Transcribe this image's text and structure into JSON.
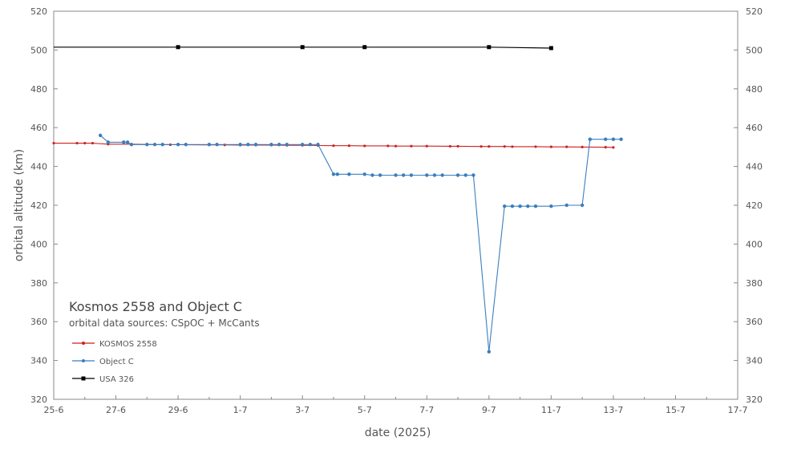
{
  "chart_data": {
    "type": "line",
    "title": "Kosmos 2558 and Object C",
    "subtitle": "orbital data sources:  CSpOC + McCants",
    "xlabel": "date (2025)",
    "ylabel": "orbital altitude (km)",
    "x_range": [
      "2025-06-25",
      "2025-07-17"
    ],
    "x_ticks": [
      "25-6",
      "27-6",
      "29-6",
      "1-7",
      "3-7",
      "5-7",
      "7-7",
      "9-7",
      "11-7",
      "13-7",
      "15-7",
      "17-7"
    ],
    "ylim": [
      320,
      520
    ],
    "y_ticks": [
      "320",
      "340",
      "360",
      "380",
      "400",
      "420",
      "440",
      "460",
      "480",
      "500",
      "520"
    ],
    "y_axis_right": true,
    "grid": false,
    "legend_position": "bottom-left",
    "series": [
      {
        "name": "KOSMOS 2558",
        "color": "#cc2222",
        "marker": "small-dot",
        "x": [
          "2025-06-25",
          "2025-06-25 18:00",
          "2025-06-26",
          "2025-06-26 06:00",
          "2025-06-26 18:00",
          "2025-06-27 12:00",
          "2025-06-28 06:00",
          "2025-06-28 18:00",
          "2025-06-29",
          "2025-06-30",
          "2025-06-30 12:00",
          "2025-07-01",
          "2025-07-01 12:00",
          "2025-07-02",
          "2025-07-02 12:00",
          "2025-07-03",
          "2025-07-03 12:00",
          "2025-07-04",
          "2025-07-04 12:00",
          "2025-07-05",
          "2025-07-05 18:00",
          "2025-07-06",
          "2025-07-06 12:00",
          "2025-07-07",
          "2025-07-07 18:00",
          "2025-07-08",
          "2025-07-08 18:00",
          "2025-07-09",
          "2025-07-09 12:00",
          "2025-07-09 18:00",
          "2025-07-10 12:00",
          "2025-07-11",
          "2025-07-11 12:00",
          "2025-07-12",
          "2025-07-12 18:00",
          "2025-07-13"
        ],
        "y": [
          452,
          452,
          452,
          452,
          451.5,
          451.5,
          451.3,
          451.2,
          451.2,
          451.1,
          451.1,
          451.0,
          451.0,
          451.0,
          450.9,
          450.9,
          450.8,
          450.7,
          450.7,
          450.6,
          450.6,
          450.5,
          450.5,
          450.5,
          450.4,
          450.4,
          450.3,
          450.3,
          450.3,
          450.2,
          450.2,
          450.1,
          450.1,
          450.0,
          449.9,
          449.8
        ]
      },
      {
        "name": "Object C",
        "color": "#3a7ebf",
        "marker": "dot",
        "x": [
          "2025-06-26 12:00",
          "2025-06-26 18:00",
          "2025-06-27 06:00",
          "2025-06-27 09:00",
          "2025-06-27 12:00",
          "2025-06-28",
          "2025-06-28 06:00",
          "2025-06-28 12:00",
          "2025-06-29",
          "2025-06-29 06:00",
          "2025-06-30",
          "2025-06-30 06:00",
          "2025-07-01",
          "2025-07-01 06:00",
          "2025-07-01 12:00",
          "2025-07-02",
          "2025-07-02 06:00",
          "2025-07-02 12:00",
          "2025-07-03",
          "2025-07-03 06:00",
          "2025-07-03 12:00",
          "2025-07-04",
          "2025-07-04 03:00",
          "2025-07-04 12:00",
          "2025-07-05",
          "2025-07-05 06:00",
          "2025-07-05 12:00",
          "2025-07-06",
          "2025-07-06 06:00",
          "2025-07-06 12:00",
          "2025-07-07",
          "2025-07-07 06:00",
          "2025-07-07 12:00",
          "2025-07-08",
          "2025-07-08 06:00",
          "2025-07-08 12:00",
          "2025-07-09",
          "2025-07-09 12:00",
          "2025-07-09 18:00",
          "2025-07-10",
          "2025-07-10 06:00",
          "2025-07-10 12:00",
          "2025-07-11",
          "2025-07-11 12:00",
          "2025-07-12",
          "2025-07-12 06:00",
          "2025-07-12 18:00",
          "2025-07-13",
          "2025-07-13 06:00"
        ],
        "y": [
          456,
          452.5,
          452.5,
          452.5,
          451.3,
          451.3,
          451.3,
          451.3,
          451.3,
          451.3,
          451.3,
          451.3,
          451.3,
          451.3,
          451.3,
          451.3,
          451.3,
          451.3,
          451.3,
          451.3,
          451.3,
          436,
          436,
          436,
          436,
          435.5,
          435.5,
          435.5,
          435.5,
          435.5,
          435.5,
          435.5,
          435.5,
          435.5,
          435.5,
          435.5,
          344.5,
          419.5,
          419.5,
          419.5,
          419.5,
          419.5,
          419.5,
          420,
          420,
          454,
          454,
          454,
          454
        ]
      },
      {
        "name": "USA 326",
        "color": "#000000",
        "marker": "square",
        "x": [
          "2025-06-25",
          "2025-06-29",
          "2025-07-03",
          "2025-07-05",
          "2025-07-09",
          "2025-07-11"
        ],
        "y": [
          501.5,
          501.5,
          501.5,
          501.5,
          501.5,
          501.0
        ],
        "marked": [
          false,
          true,
          true,
          true,
          true,
          true
        ]
      }
    ]
  }
}
